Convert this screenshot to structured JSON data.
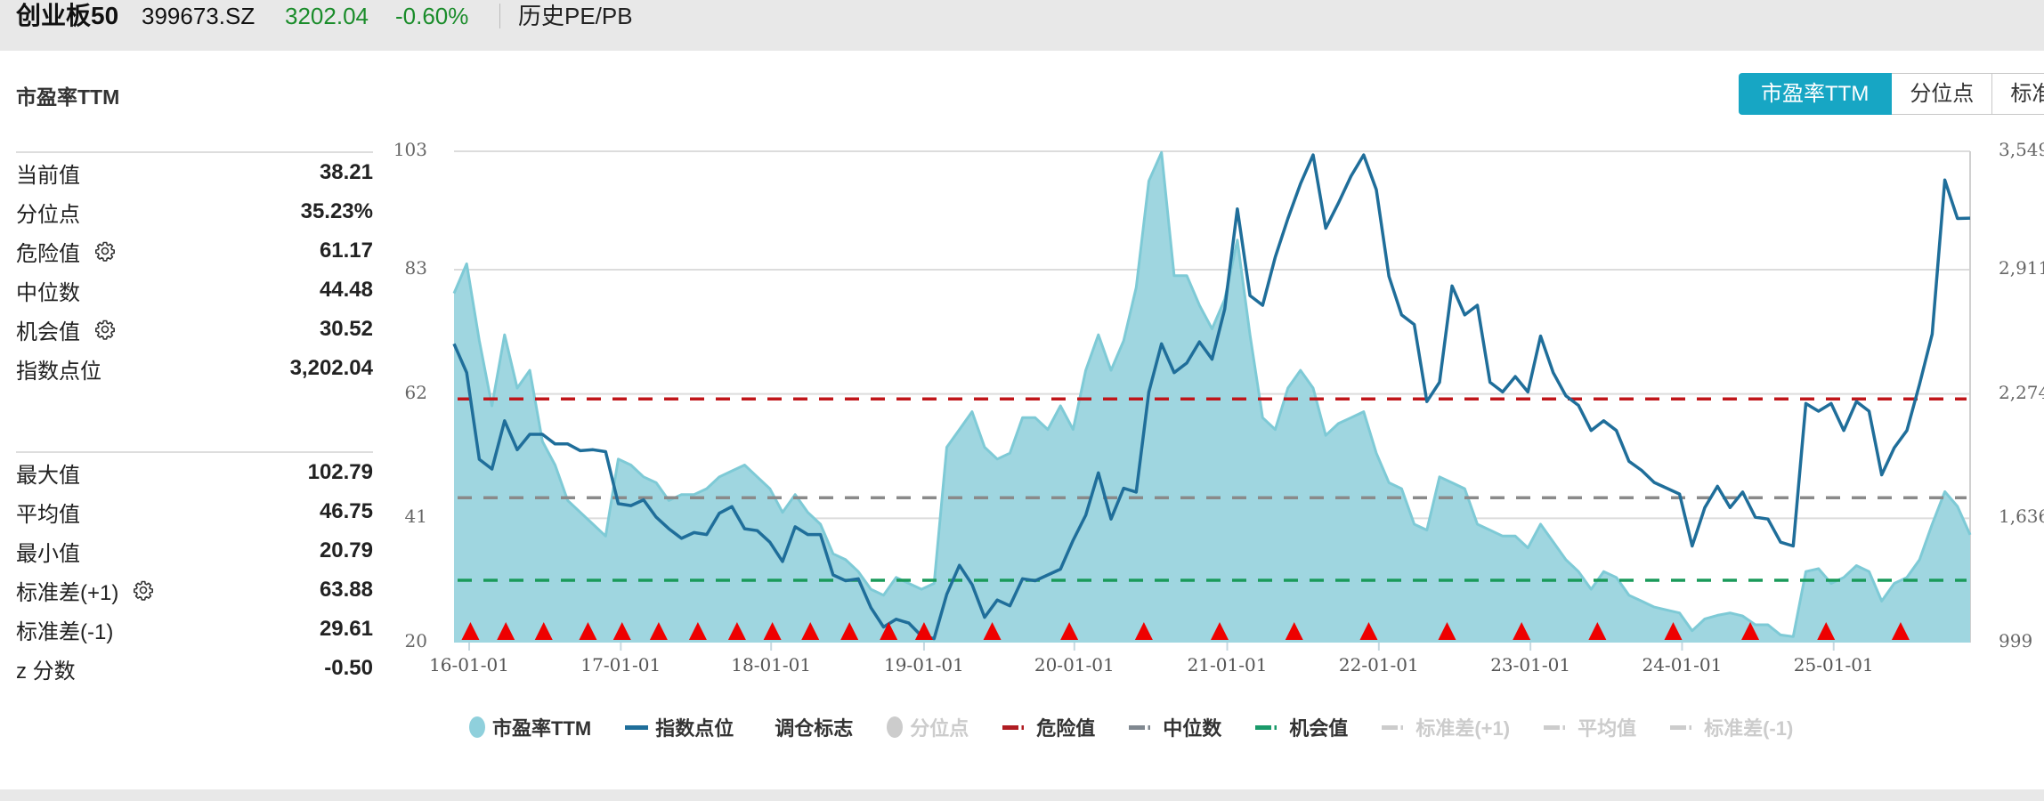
{
  "header": {
    "name": "创业板50",
    "code": "399673.SZ",
    "price": "3202.04",
    "change": "-0.60%",
    "tab": "历史PE/PB"
  },
  "section_title": "市盈率TTM",
  "tabs": [
    {
      "label": "市盈率TTM",
      "active": true
    },
    {
      "label": "分位点",
      "active": false
    },
    {
      "label": "标准差",
      "active": false
    }
  ],
  "stats_group1": [
    {
      "label": "当前值",
      "value": "38.21",
      "gear": false
    },
    {
      "label": "分位点",
      "value": "35.23%",
      "gear": false
    },
    {
      "label": "危险值",
      "value": "61.17",
      "gear": true
    },
    {
      "label": "中位数",
      "value": "44.48",
      "gear": false
    },
    {
      "label": "机会值",
      "value": "30.52",
      "gear": true
    },
    {
      "label": "指数点位",
      "value": "3,202.04",
      "gear": false
    }
  ],
  "stats_group2": [
    {
      "label": "最大值",
      "value": "102.79",
      "gear": false
    },
    {
      "label": "平均值",
      "value": "46.75",
      "gear": false
    },
    {
      "label": "最小值",
      "value": "20.79",
      "gear": false
    },
    {
      "label": "标准差(+1)",
      "value": "63.88",
      "gear": true
    },
    {
      "label": "标准差(-1)",
      "value": "29.61",
      "gear": false
    },
    {
      "label": "z 分数",
      "value": "-0.50",
      "gear": false
    }
  ],
  "colors": {
    "accent": "#17a6c4",
    "pe_fill": "#9fd6e0",
    "pe_stroke": "#7ecad6",
    "index_line": "#1f6e9a",
    "marker": "#ee0000",
    "danger": "#c0161a",
    "median": "#8a8a8a",
    "opportunity": "#1a9a5a",
    "disabled": "#cccccc",
    "up_down": "#1a8c2a"
  },
  "chart_data": {
    "type": "area+line",
    "title": "市盈率TTM",
    "x_unit": "month index",
    "x_ticks": [
      {
        "label": "16-01-01",
        "index": 1.2
      },
      {
        "label": "17-01-01",
        "index": 13.2
      },
      {
        "label": "18-01-01",
        "index": 25.1
      },
      {
        "label": "19-01-01",
        "index": 37.2
      },
      {
        "label": "20-01-01",
        "index": 49.1
      },
      {
        "label": "21-01-01",
        "index": 61.2
      },
      {
        "label": "22-01-01",
        "index": 73.2
      },
      {
        "label": "23-01-01",
        "index": 85.2
      },
      {
        "label": "24-01-01",
        "index": 97.2
      },
      {
        "label": "25-01-01",
        "index": 109.2
      }
    ],
    "y_left": {
      "range": [
        20,
        103
      ],
      "ticks": [
        "103",
        "83",
        "62",
        "41",
        "20"
      ],
      "tick_values": [
        103,
        83,
        62,
        41,
        20
      ]
    },
    "y_right": {
      "range": [
        999,
        3549
      ],
      "ticks": [
        "3,549",
        "2,911",
        "2,274",
        "1,636",
        "999"
      ]
    },
    "grid": true,
    "series": [
      {
        "name": "市盈率TTM",
        "axis": "left",
        "kind": "area",
        "values": [
          79,
          84,
          71,
          60,
          72,
          63,
          66,
          54,
          50,
          44,
          42,
          40,
          38,
          51,
          50,
          48,
          47,
          44,
          45,
          45,
          46,
          48,
          49,
          50,
          48,
          46,
          42,
          45,
          42,
          40,
          35,
          34,
          32,
          29,
          28,
          31,
          30,
          29,
          30,
          53,
          56,
          59,
          53,
          51,
          52,
          58,
          58,
          56,
          60,
          56,
          66,
          72,
          66,
          71,
          80,
          98,
          102.8,
          82,
          82,
          77,
          73,
          78,
          88,
          72,
          58,
          56,
          63,
          66,
          63,
          55,
          57,
          58,
          59,
          52,
          47,
          46,
          40,
          39,
          48,
          47,
          46,
          40,
          39,
          38,
          38,
          36,
          40,
          37,
          34,
          32,
          29,
          32,
          31,
          28,
          27,
          26,
          25.5,
          25,
          22,
          24,
          24.6,
          25,
          24.5,
          23,
          23,
          21.3,
          21,
          32,
          32.5,
          30,
          31,
          33,
          32,
          27,
          30,
          31,
          34,
          40,
          45.5,
          43,
          38.21
        ]
      },
      {
        "name": "指数点位",
        "axis": "right",
        "kind": "line",
        "values": [
          2550,
          2400,
          1950,
          1900,
          2150,
          2000,
          2080,
          2080,
          2030,
          2030,
          1995,
          2000,
          1990,
          1720,
          1710,
          1740,
          1650,
          1590,
          1540,
          1570,
          1560,
          1670,
          1705,
          1590,
          1580,
          1520,
          1420,
          1600,
          1560,
          1560,
          1350,
          1320,
          1330,
          1180,
          1080,
          1120,
          1100,
          1033,
          1020,
          1250,
          1400,
          1300,
          1130,
          1220,
          1190,
          1330,
          1320,
          1350,
          1380,
          1530,
          1660,
          1880,
          1640,
          1800,
          1780,
          2300,
          2550,
          2400,
          2450,
          2560,
          2470,
          2730,
          3250,
          2800,
          2750,
          3000,
          3200,
          3380,
          3530,
          3150,
          3280,
          3420,
          3530,
          3350,
          2900,
          2700,
          2650,
          2250,
          2350,
          2850,
          2700,
          2750,
          2350,
          2300,
          2380,
          2300,
          2590,
          2400,
          2280,
          2230,
          2100,
          2150,
          2100,
          1940,
          1893,
          1830,
          1800,
          1770,
          1500,
          1700,
          1810,
          1700,
          1780,
          1650,
          1640,
          1520,
          1500,
          2240,
          2200,
          2240,
          2100,
          2250,
          2200,
          1870,
          2010,
          2100,
          2340,
          2600,
          3400,
          3200,
          3202.04
        ]
      }
    ],
    "reference_lines": [
      {
        "name": "危险值",
        "value": 61.17
      },
      {
        "name": "中位数",
        "value": 44.48
      },
      {
        "name": "机会值",
        "value": 30.52
      }
    ],
    "rebalance_markers": [
      1.3,
      4.1,
      7.1,
      10.6,
      13.3,
      16.2,
      19.3,
      22.4,
      25.2,
      28.2,
      31.3,
      34.4,
      37.2,
      42.6,
      48.7,
      54.6,
      60.6,
      66.5,
      72.4,
      78.6,
      84.5,
      90.5,
      96.5,
      102.6,
      108.6,
      114.5
    ],
    "legend_position": "bottom"
  },
  "legend": [
    {
      "label": "市盈率TTM",
      "shape": "circle",
      "color": "#8fd0dc",
      "enabled": true
    },
    {
      "label": "指数点位",
      "shape": "line",
      "color": "#1f6e9a",
      "enabled": true
    },
    {
      "label": "调仓标志",
      "shape": "triangle",
      "color": "#ee0000",
      "enabled": true
    },
    {
      "label": "分位点",
      "shape": "circle",
      "color": "#cccccc",
      "enabled": false
    },
    {
      "label": "危险值",
      "shape": "dash",
      "color": "#b01c22",
      "enabled": true
    },
    {
      "label": "中位数",
      "shape": "dash",
      "color": "#808890",
      "enabled": true
    },
    {
      "label": "机会值",
      "shape": "dash",
      "color": "#1a9a6a",
      "enabled": true
    },
    {
      "label": "标准差(+1)",
      "shape": "dash",
      "color": "#cccccc",
      "enabled": false
    },
    {
      "label": "平均值",
      "shape": "dash",
      "color": "#cccccc",
      "enabled": false
    },
    {
      "label": "标准差(-1)",
      "shape": "dash",
      "color": "#cccccc",
      "enabled": false
    }
  ]
}
